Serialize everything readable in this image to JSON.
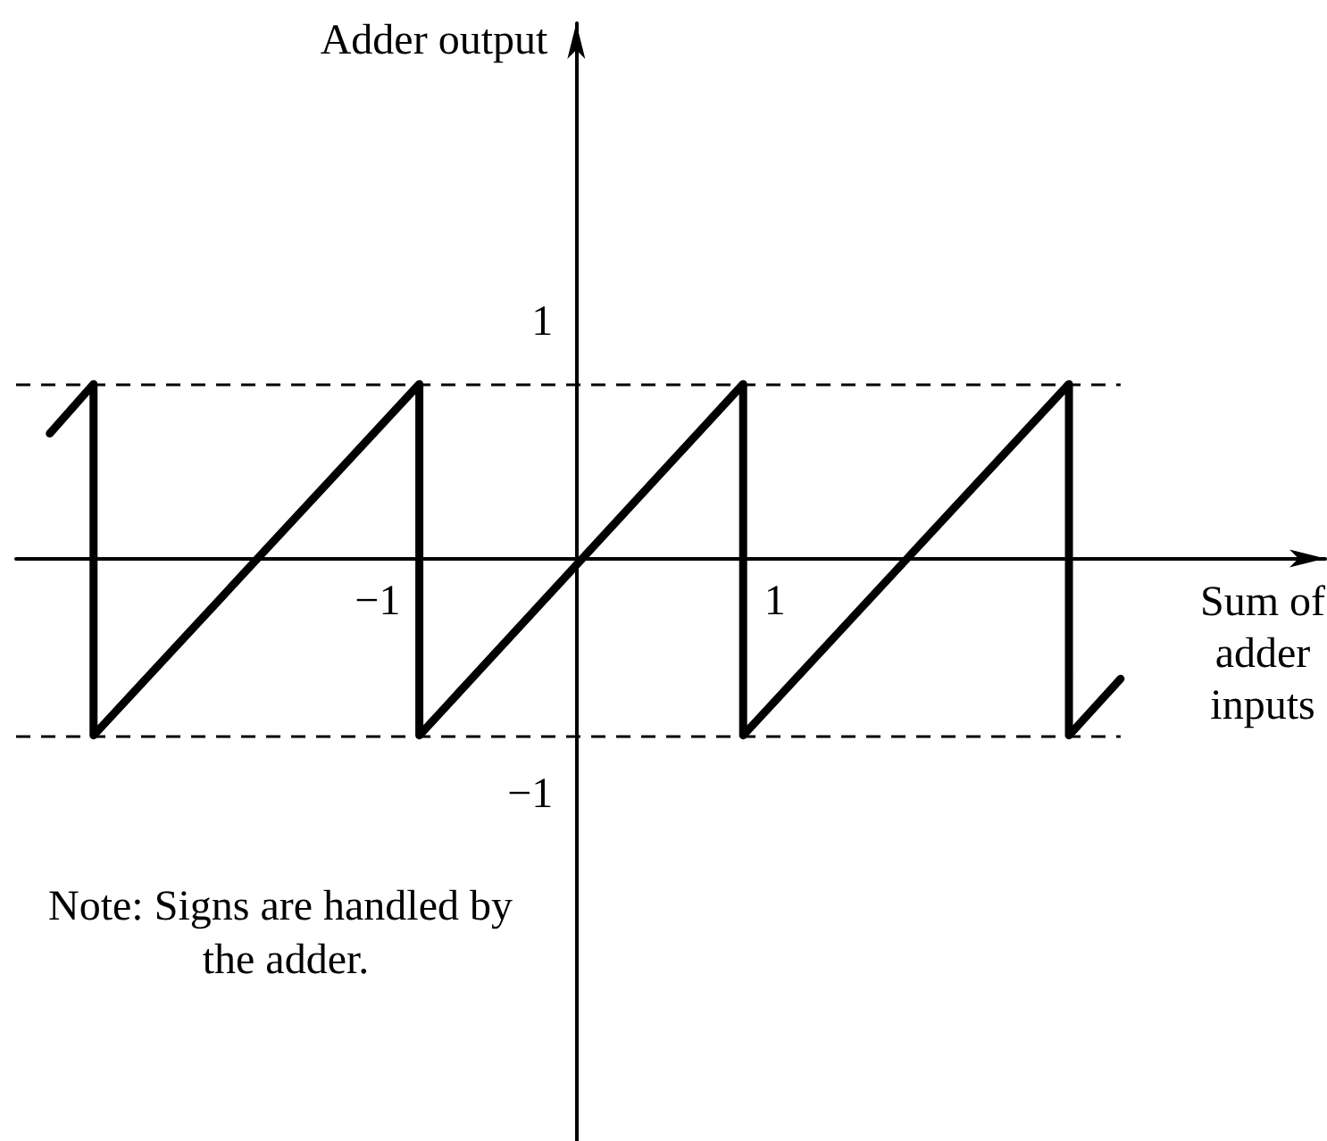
{
  "chart_data": {
    "type": "line",
    "ylabel": "Adder output",
    "xlabel": "Sum of adder inputs",
    "annotations": [
      "Note: Signs are handled by the adder."
    ],
    "x": [
      -2.65,
      -2.43,
      -2.43,
      -0.79,
      -0.79,
      0.84,
      0.84,
      2.48,
      2.48,
      2.74
    ],
    "values": [
      0.53,
      0.74,
      -0.75,
      0.74,
      -0.75,
      0.74,
      -0.75,
      0.74,
      -0.75,
      -0.51
    ],
    "color": "#000000",
    "xlim": [
      -2.82,
      3.77
    ],
    "ylim": [
      -2.47,
      2.27
    ],
    "xticks": [
      {
        "value": -1,
        "label": "−1"
      },
      1
    ],
    "yticks": [
      {
        "value": -1,
        "label": "−1"
      },
      1
    ],
    "ref_lines": [
      {
        "axis": "y",
        "value": 0.74,
        "color": "#000000",
        "line_style": "dashed"
      },
      {
        "axis": "y",
        "value": -0.75,
        "color": "#000000",
        "line_style": "dashed"
      }
    ],
    "grid": false,
    "marker": "none",
    "line_style": "solid"
  }
}
